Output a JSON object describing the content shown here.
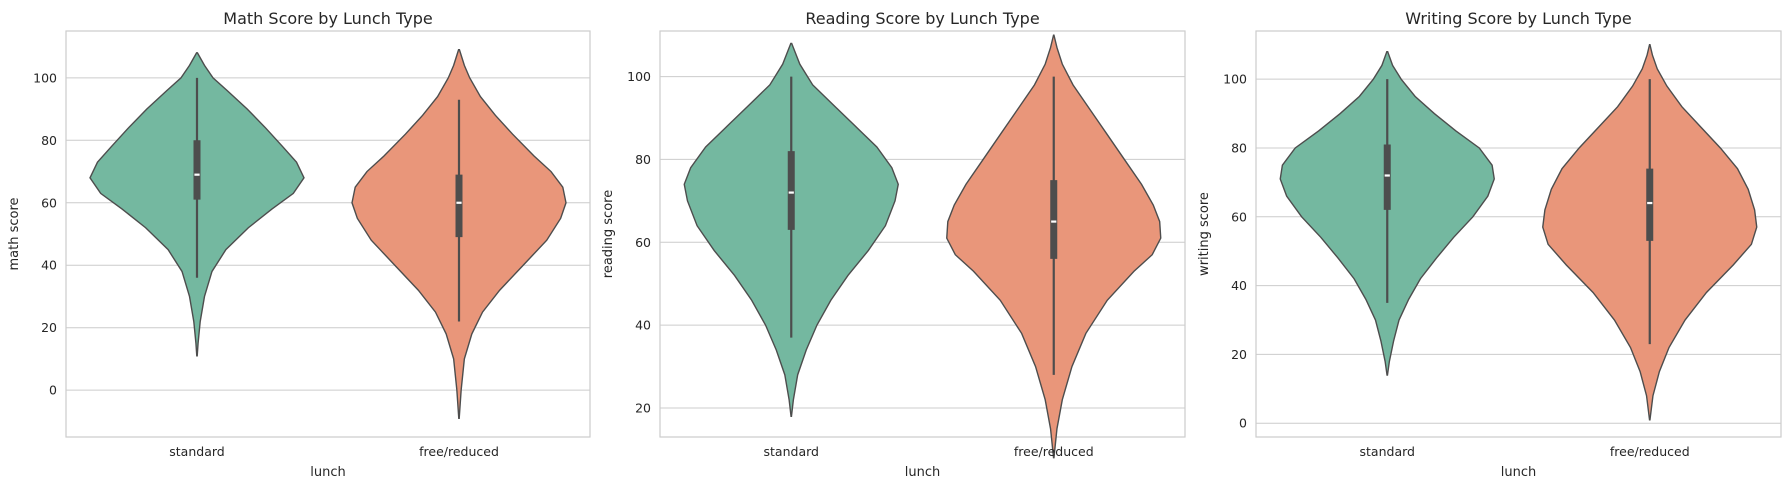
{
  "chart_data": [
    {
      "type": "violin",
      "title": "Math Score by Lunch Type",
      "xlabel": "lunch",
      "ylabel": "math score",
      "ylim": [
        -15,
        115
      ],
      "yticks": [
        0,
        20,
        40,
        60,
        80,
        100
      ],
      "grid": true,
      "categories": [
        "standard",
        "free/reduced"
      ],
      "palette": [
        "#74b8a0",
        "#e9967a"
      ],
      "series": [
        {
          "category": "standard",
          "extent": [
            11,
            108
          ],
          "whisker": [
            36,
            100
          ],
          "q1": 61,
          "median": 69,
          "q3": 80,
          "density": [
            [
              11,
              0.002
            ],
            [
              15,
              0.01
            ],
            [
              22,
              0.03
            ],
            [
              30,
              0.07
            ],
            [
              38,
              0.14
            ],
            [
              45,
              0.27
            ],
            [
              52,
              0.48
            ],
            [
              58,
              0.7
            ],
            [
              63,
              0.9
            ],
            [
              68,
              1.0
            ],
            [
              73,
              0.93
            ],
            [
              78,
              0.8
            ],
            [
              84,
              0.64
            ],
            [
              90,
              0.47
            ],
            [
              96,
              0.28
            ],
            [
              100,
              0.15
            ],
            [
              104,
              0.07
            ],
            [
              108,
              0.004
            ]
          ]
        },
        {
          "category": "free/reduced",
          "extent": [
            -9,
            109
          ],
          "whisker": [
            22,
            93
          ],
          "q1": 49,
          "median": 60,
          "q3": 69,
          "density": [
            [
              -9,
              0.002
            ],
            [
              0,
              0.02
            ],
            [
              10,
              0.05
            ],
            [
              18,
              0.12
            ],
            [
              25,
              0.22
            ],
            [
              32,
              0.38
            ],
            [
              40,
              0.6
            ],
            [
              48,
              0.82
            ],
            [
              55,
              0.95
            ],
            [
              60,
              1.0
            ],
            [
              65,
              0.97
            ],
            [
              70,
              0.86
            ],
            [
              75,
              0.7
            ],
            [
              82,
              0.5
            ],
            [
              88,
              0.34
            ],
            [
              94,
              0.2
            ],
            [
              100,
              0.1
            ],
            [
              104,
              0.05
            ],
            [
              109,
              0.004
            ]
          ]
        }
      ]
    },
    {
      "type": "violin",
      "title": "Reading Score by Lunch Type",
      "xlabel": "lunch",
      "ylabel": "reading score",
      "ylim": [
        13,
        111
      ],
      "yticks": [
        20,
        40,
        60,
        80,
        100
      ],
      "grid": true,
      "categories": [
        "standard",
        "free/reduced"
      ],
      "palette": [
        "#74b8a0",
        "#e9967a"
      ],
      "series": [
        {
          "category": "standard",
          "extent": [
            18,
            108
          ],
          "whisker": [
            37,
            100
          ],
          "q1": 63,
          "median": 72,
          "q3": 82,
          "density": [
            [
              18,
              0.002
            ],
            [
              22,
              0.02
            ],
            [
              28,
              0.06
            ],
            [
              34,
              0.14
            ],
            [
              40,
              0.24
            ],
            [
              46,
              0.37
            ],
            [
              52,
              0.53
            ],
            [
              58,
              0.72
            ],
            [
              64,
              0.88
            ],
            [
              70,
              0.97
            ],
            [
              74,
              1.0
            ],
            [
              78,
              0.94
            ],
            [
              83,
              0.8
            ],
            [
              88,
              0.6
            ],
            [
              93,
              0.4
            ],
            [
              98,
              0.2
            ],
            [
              103,
              0.08
            ],
            [
              108,
              0.004
            ]
          ]
        },
        {
          "category": "free/reduced",
          "extent": [
            8,
            110
          ],
          "whisker": [
            28,
            100
          ],
          "q1": 56,
          "median": 65,
          "q3": 75,
          "density": [
            [
              8,
              0.002
            ],
            [
              15,
              0.03
            ],
            [
              22,
              0.08
            ],
            [
              30,
              0.17
            ],
            [
              38,
              0.3
            ],
            [
              46,
              0.5
            ],
            [
              53,
              0.75
            ],
            [
              57,
              0.92
            ],
            [
              61,
              1.0
            ],
            [
              65,
              0.99
            ],
            [
              69,
              0.93
            ],
            [
              74,
              0.82
            ],
            [
              80,
              0.66
            ],
            [
              86,
              0.5
            ],
            [
              92,
              0.34
            ],
            [
              98,
              0.18
            ],
            [
              103,
              0.08
            ],
            [
              107,
              0.03
            ],
            [
              110,
              0.002
            ]
          ]
        }
      ]
    },
    {
      "type": "violin",
      "title": "Writing Score by Lunch Type",
      "xlabel": "lunch",
      "ylabel": "writing score",
      "ylim": [
        -4,
        114
      ],
      "yticks": [
        0,
        20,
        40,
        60,
        80,
        100
      ],
      "grid": true,
      "categories": [
        "standard",
        "free/reduced"
      ],
      "palette": [
        "#74b8a0",
        "#e9967a"
      ],
      "series": [
        {
          "category": "standard",
          "extent": [
            14,
            108
          ],
          "whisker": [
            35,
            100
          ],
          "q1": 62,
          "median": 72,
          "q3": 81,
          "density": [
            [
              14,
              0.002
            ],
            [
              18,
              0.02
            ],
            [
              24,
              0.06
            ],
            [
              30,
              0.11
            ],
            [
              36,
              0.2
            ],
            [
              42,
              0.31
            ],
            [
              48,
              0.46
            ],
            [
              54,
              0.62
            ],
            [
              60,
              0.8
            ],
            [
              66,
              0.94
            ],
            [
              71,
              1.0
            ],
            [
              75,
              0.98
            ],
            [
              80,
              0.86
            ],
            [
              85,
              0.64
            ],
            [
              90,
              0.44
            ],
            [
              95,
              0.26
            ],
            [
              100,
              0.13
            ],
            [
              104,
              0.05
            ],
            [
              108,
              0.004
            ]
          ]
        },
        {
          "category": "free/reduced",
          "extent": [
            1,
            110
          ],
          "whisker": [
            23,
            100
          ],
          "q1": 53,
          "median": 64,
          "q3": 74,
          "density": [
            [
              1,
              0.002
            ],
            [
              8,
              0.03
            ],
            [
              15,
              0.09
            ],
            [
              22,
              0.18
            ],
            [
              30,
              0.33
            ],
            [
              38,
              0.53
            ],
            [
              46,
              0.78
            ],
            [
              52,
              0.95
            ],
            [
              57,
              1.0
            ],
            [
              62,
              0.98
            ],
            [
              68,
              0.92
            ],
            [
              74,
              0.82
            ],
            [
              80,
              0.66
            ],
            [
              86,
              0.48
            ],
            [
              92,
              0.3
            ],
            [
              98,
              0.16
            ],
            [
              103,
              0.07
            ],
            [
              107,
              0.025
            ],
            [
              110,
              0.002
            ]
          ]
        }
      ]
    }
  ]
}
